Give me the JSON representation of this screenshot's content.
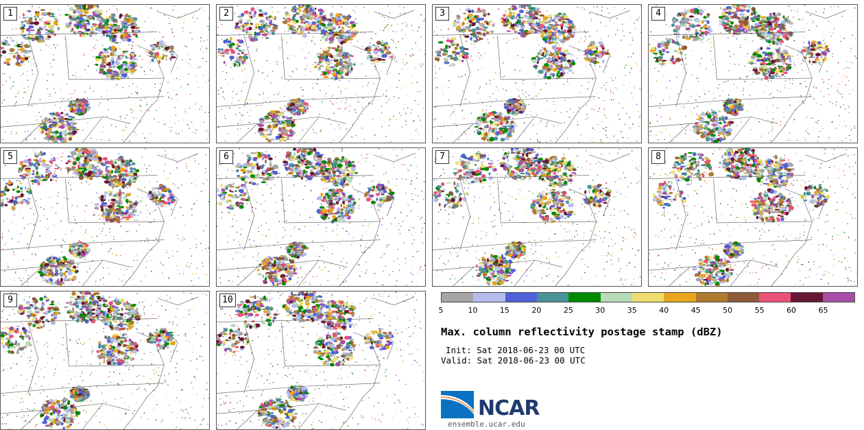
{
  "panels": [
    {
      "label": "1"
    },
    {
      "label": "2"
    },
    {
      "label": "3"
    },
    {
      "label": "4"
    },
    {
      "label": "5"
    },
    {
      "label": "6"
    },
    {
      "label": "7"
    },
    {
      "label": "8"
    },
    {
      "label": "9"
    },
    {
      "label": "10"
    }
  ],
  "colorbar": {
    "colors": [
      "#a6a6a6",
      "#b4bcee",
      "#5260d8",
      "#4a9296",
      "#008a00",
      "#b8dcb8",
      "#eedc6e",
      "#e8a61e",
      "#b07a30",
      "#8c5a38",
      "#ec5276",
      "#661834",
      "#a84ea8"
    ],
    "ticks": [
      "5",
      "10",
      "15",
      "20",
      "25",
      "30",
      "35",
      "40",
      "45",
      "50",
      "55",
      "60",
      "65"
    ]
  },
  "title": "Max. column reflectivity postage stamp (dBZ)",
  "init": "Init: Sat 2018-06-23 00 UTC",
  "valid": "Valid: Sat 2018-06-23 00 UTC",
  "logo": {
    "text": "NCAR",
    "url_text": "ensemble.ucar.edu"
  }
}
